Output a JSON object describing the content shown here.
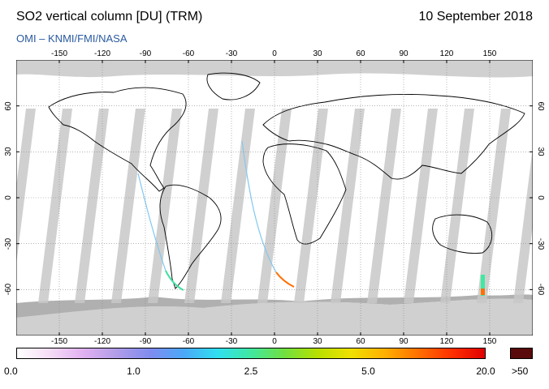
{
  "header": {
    "title": "SO2 vertical column [DU] (TRM)",
    "date": "10 September 2018",
    "source": "OMI  –  KNMI/FMI/NASA"
  },
  "map": {
    "lon_ticks": [
      "-150",
      "-120",
      "-90",
      "-60",
      "-30",
      "0",
      "30",
      "60",
      "90",
      "120",
      "150"
    ],
    "lon_values": [
      -150,
      -120,
      -90,
      -60,
      -30,
      0,
      30,
      60,
      90,
      120,
      150
    ],
    "lat_ticks": [
      "60",
      "30",
      "0",
      "-30",
      "-60"
    ],
    "lat_values": [
      60,
      30,
      0,
      -30,
      -60
    ],
    "lon_range": [
      -180,
      180
    ],
    "lat_range": [
      -90,
      90
    ],
    "grid": true
  },
  "colorbar": {
    "labels": [
      "0.0",
      "1.0",
      "2.5",
      "5.0",
      "20.0"
    ],
    "label_positions": [
      0.0,
      0.25,
      0.5,
      0.75,
      1.0
    ],
    "overflow_label": ">50",
    "colors": [
      "#ffffff",
      "#f6dcf6",
      "#e0b0f0",
      "#b09ce8",
      "#7e8cf0",
      "#4aa8f8",
      "#30e0f0",
      "#40e8a0",
      "#70e040",
      "#b8e000",
      "#f0e000",
      "#ffb000",
      "#ff7000",
      "#ff3000",
      "#e00000"
    ],
    "overflow_color": "#5a0a0a"
  }
}
